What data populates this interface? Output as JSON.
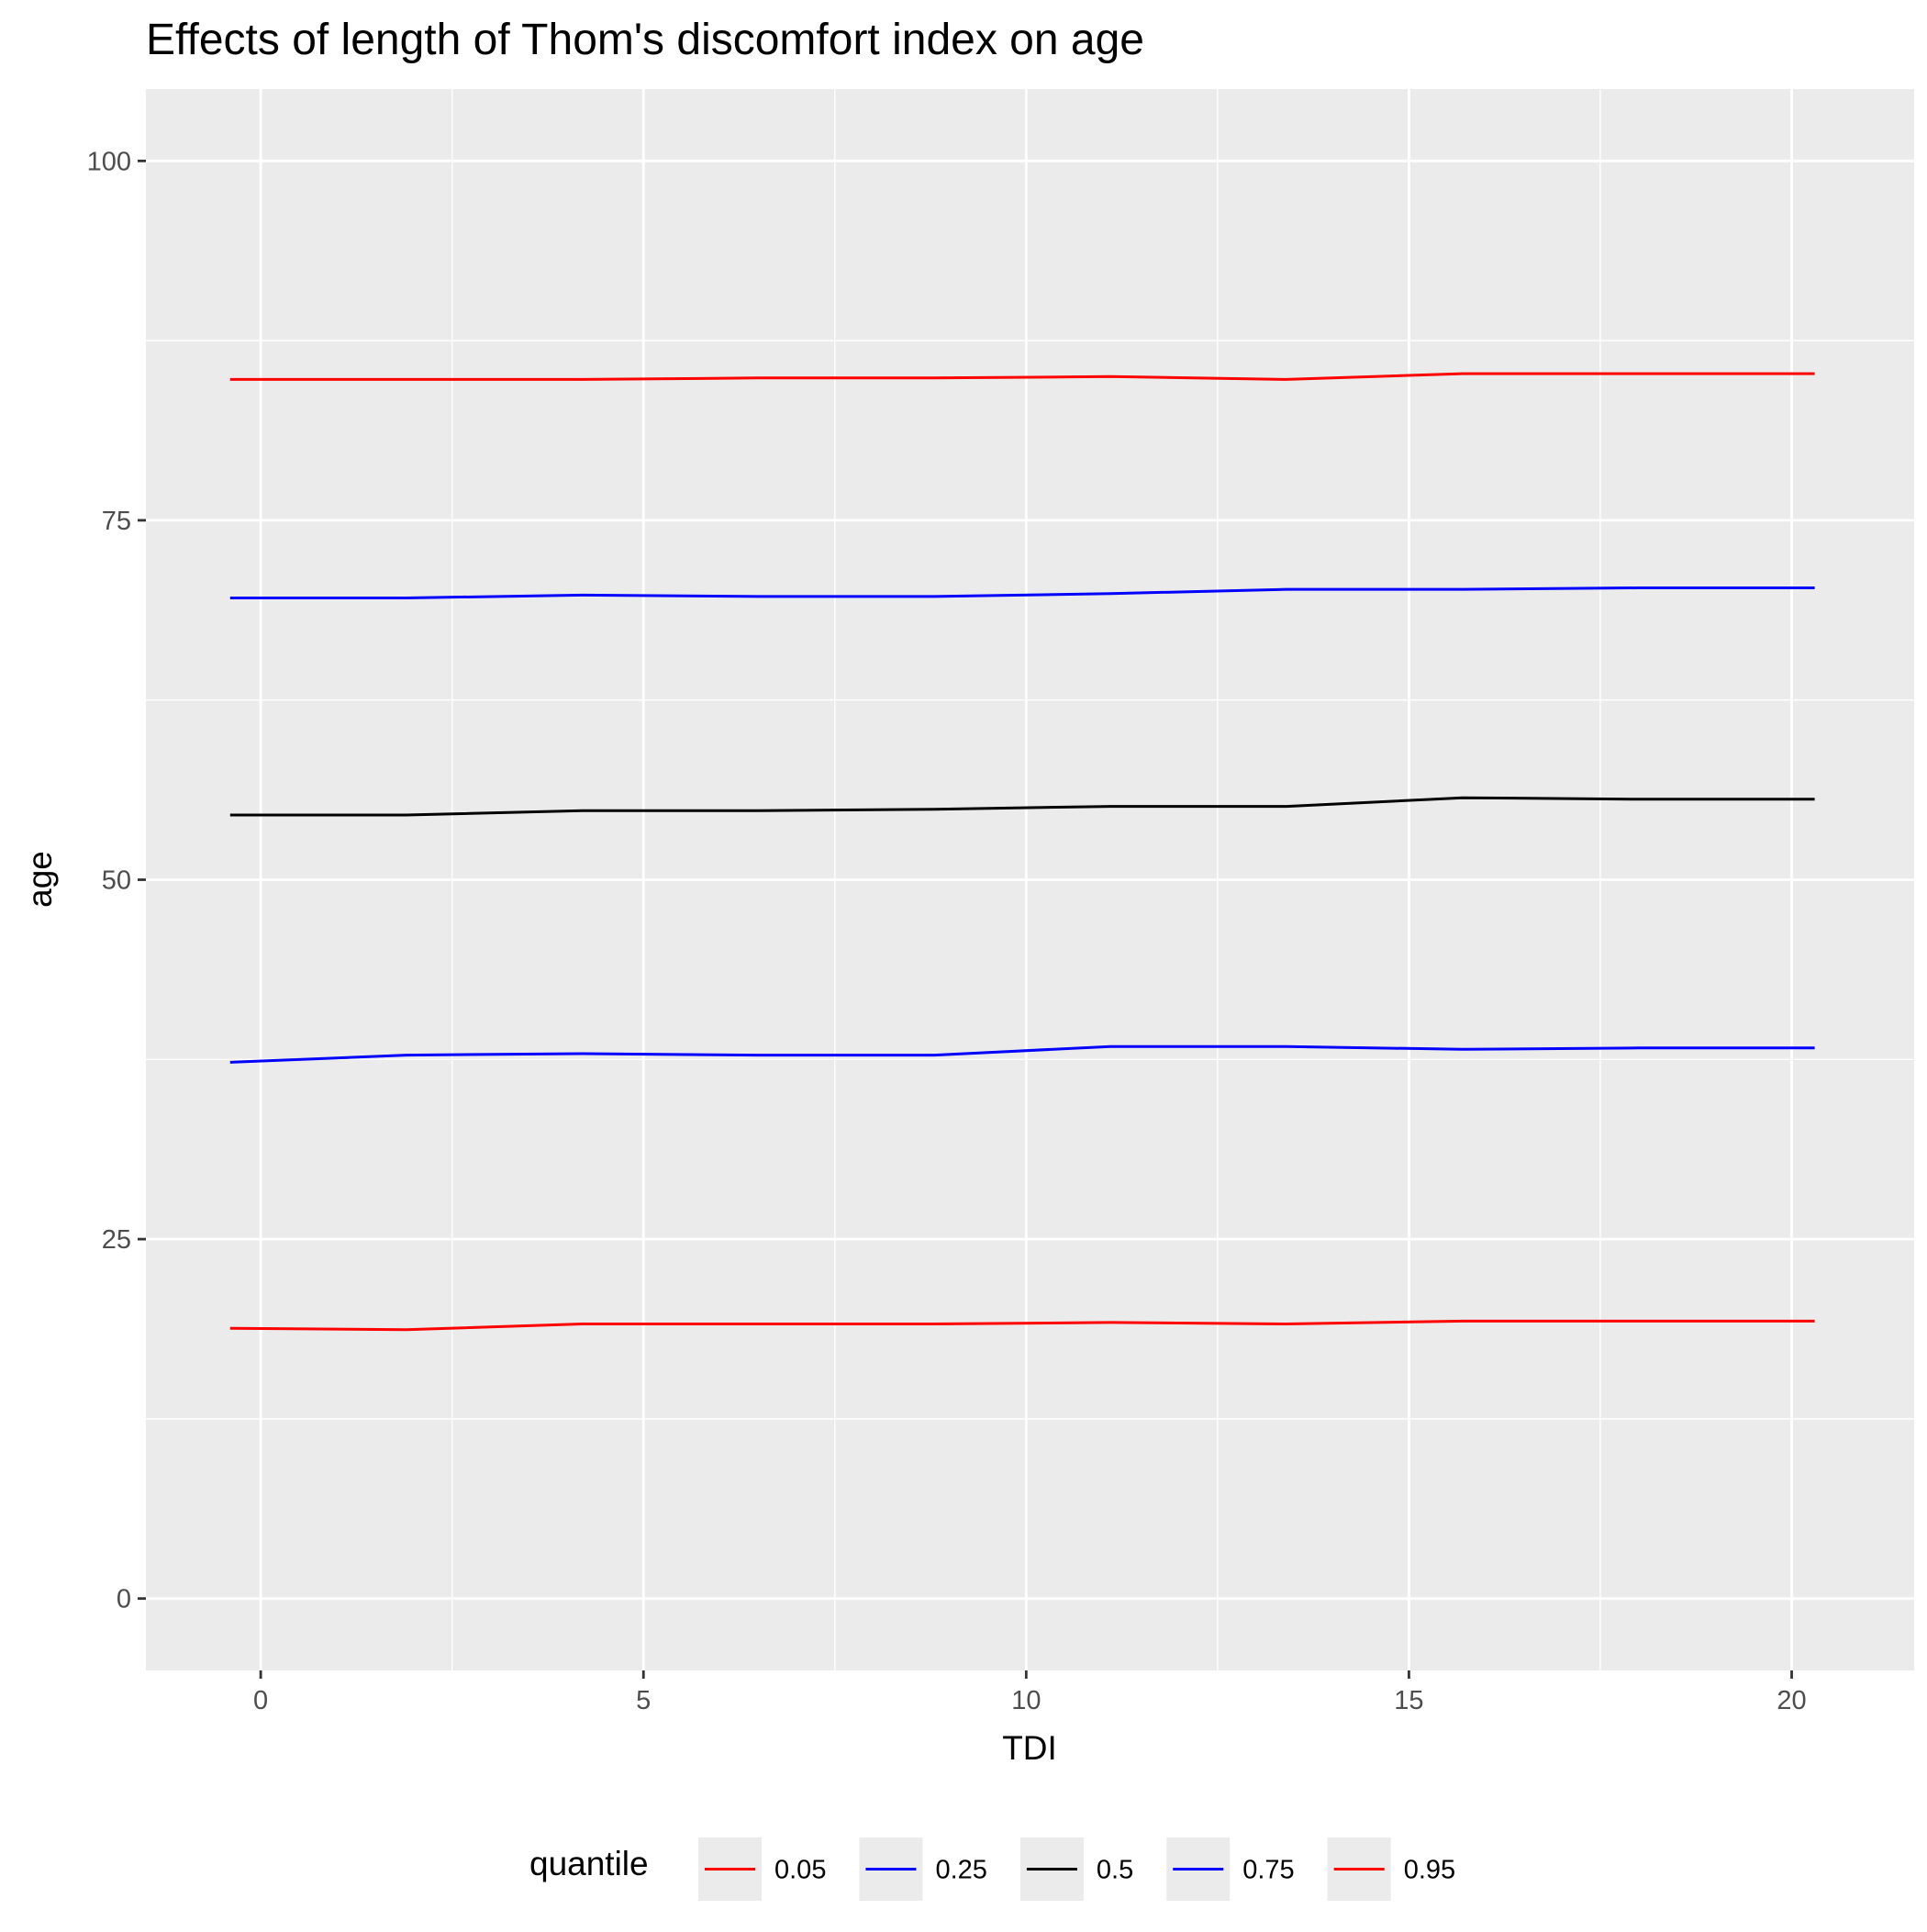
{
  "chart_data": {
    "type": "line",
    "title": "Effects of length of Thom's discomfort index on age",
    "xlabel": "TDI",
    "ylabel": "age",
    "xlim": [
      -1.5,
      21.6
    ],
    "ylim": [
      -5,
      105
    ],
    "xticks": [
      0,
      5,
      10,
      15,
      20
    ],
    "yticks": [
      0,
      25,
      50,
      75,
      100
    ],
    "x_tick_labels": [
      "0",
      "5",
      "10",
      "15",
      "20"
    ],
    "y_tick_labels": [
      "0",
      "25",
      "50",
      "75",
      "100"
    ],
    "grid": true,
    "legend": {
      "title": "quantile",
      "position": "bottom"
    },
    "x": [
      -0.4,
      1.9,
      4.2,
      6.5,
      8.8,
      11.1,
      13.4,
      15.7,
      18.0,
      20.3
    ],
    "series": [
      {
        "name": "0.05",
        "color": "#ff0000",
        "values": [
          18.8,
          18.7,
          19.1,
          19.1,
          19.1,
          19.2,
          19.1,
          19.3,
          19.3,
          19.3
        ]
      },
      {
        "name": "0.25",
        "color": "#0000ff",
        "values": [
          37.3,
          37.8,
          37.9,
          37.8,
          37.8,
          38.4,
          38.4,
          38.2,
          38.3,
          38.3
        ]
      },
      {
        "name": "0.5",
        "color": "#000000",
        "values": [
          54.5,
          54.5,
          54.8,
          54.8,
          54.9,
          55.1,
          55.1,
          55.7,
          55.6,
          55.6
        ]
      },
      {
        "name": "0.75",
        "color": "#0000ff",
        "values": [
          69.6,
          69.6,
          69.8,
          69.7,
          69.7,
          69.9,
          70.2,
          70.2,
          70.3,
          70.3
        ]
      },
      {
        "name": "0.95",
        "color": "#ff0000",
        "values": [
          84.8,
          84.8,
          84.8,
          84.9,
          84.9,
          85.0,
          84.8,
          85.2,
          85.2,
          85.2
        ]
      }
    ]
  }
}
